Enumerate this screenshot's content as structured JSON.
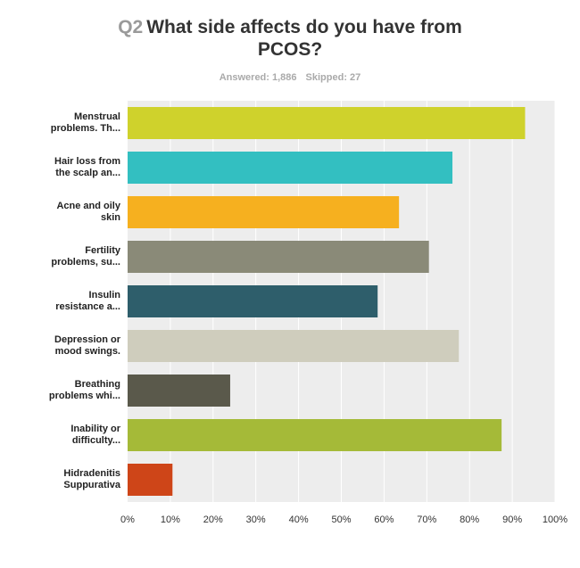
{
  "survey": {
    "question_number": "Q2",
    "question_line1": "What side affects do you have from",
    "question_line2": "PCOS?",
    "answered_label": "Answered: 1,886",
    "skipped_label": "Skipped: 27"
  },
  "chart_data": {
    "type": "bar",
    "orientation": "horizontal",
    "categories": [
      [
        "Menstrual",
        "problems. Th..."
      ],
      [
        "Hair loss from",
        "the scalp an..."
      ],
      [
        "Acne and oily",
        "skin"
      ],
      [
        "Fertility",
        "problems, su..."
      ],
      [
        "Insulin",
        "resistance a..."
      ],
      [
        "Depression or",
        "mood swings."
      ],
      [
        "Breathing",
        "problems whi..."
      ],
      [
        "Inability or",
        "difficulty..."
      ],
      [
        "Hidradenitis",
        "Suppurativa"
      ]
    ],
    "values": [
      93,
      76,
      63.5,
      70.5,
      58.5,
      77.5,
      24,
      87.5,
      10.5
    ],
    "colors": [
      "#cfd22c",
      "#33bfc1",
      "#f6b01f",
      "#8a8a78",
      "#2e5e6b",
      "#cfcdbd",
      "#5a594b",
      "#a5ba38",
      "#ce4518"
    ],
    "xlim": [
      0,
      100
    ],
    "xticks": [
      "0%",
      "10%",
      "20%",
      "30%",
      "40%",
      "50%",
      "60%",
      "70%",
      "80%",
      "90%",
      "100%"
    ],
    "grid": true,
    "plot_background": "#ededed"
  }
}
